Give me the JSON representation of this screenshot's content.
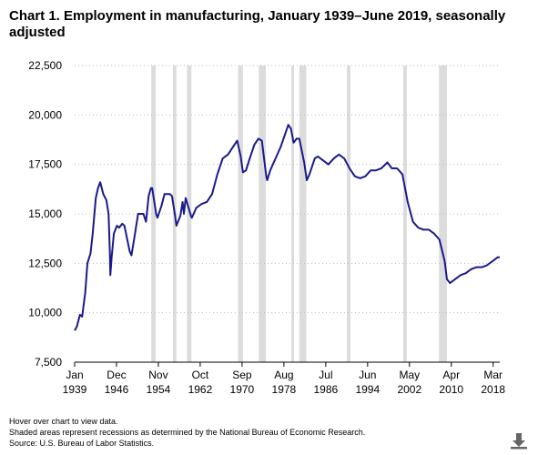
{
  "chart_data": {
    "type": "line",
    "title": [
      "Chart 1. Employment in manufacturing, January 1939–June 2019, seasonally",
      "adjusted"
    ],
    "notes": [
      "Hover over chart to view data.",
      "Shaded areas represent recessions as determined by the National Bureau of Economic Research.",
      "Source: U.S. Bureau of Labor Statistics."
    ],
    "xlim": [
      "1939-01",
      "2019-06"
    ],
    "xticks": [
      {
        "value": "1939-01",
        "label": [
          "Jan",
          "1939"
        ]
      },
      {
        "value": "1946-12",
        "label": [
          "Dec",
          "1946"
        ]
      },
      {
        "value": "1954-11",
        "label": [
          "Nov",
          "1954"
        ]
      },
      {
        "value": "1962-10",
        "label": [
          "Oct",
          "1962"
        ]
      },
      {
        "value": "1970-09",
        "label": [
          "Sep",
          "1970"
        ]
      },
      {
        "value": "1978-08",
        "label": [
          "Aug",
          "1978"
        ]
      },
      {
        "value": "1986-07",
        "label": [
          "Jul",
          "1986"
        ]
      },
      {
        "value": "1994-06",
        "label": [
          "Jun",
          "1994"
        ]
      },
      {
        "value": "2002-05",
        "label": [
          "May",
          "2002"
        ]
      },
      {
        "value": "2010-04",
        "label": [
          "Apr",
          "2010"
        ]
      },
      {
        "value": "2018-03",
        "label": [
          "Mar",
          "2018"
        ]
      }
    ],
    "ylim": [
      7500,
      22500
    ],
    "yticks": [
      {
        "value": 7500,
        "label": "7,500"
      },
      {
        "value": 10000,
        "label": "10,000"
      },
      {
        "value": 12500,
        "label": "12,500"
      },
      {
        "value": 15000,
        "label": "15,000"
      },
      {
        "value": 17500,
        "label": "17,500"
      },
      {
        "value": 20000,
        "label": "20,000"
      },
      {
        "value": 22500,
        "label": "22,500"
      }
    ],
    "grid": true,
    "recession_color": "#dcdcdc",
    "recessions": [
      [
        "1953-07",
        "1954-05"
      ],
      [
        "1957-08",
        "1958-04"
      ],
      [
        "1960-04",
        "1961-02"
      ],
      [
        "1969-12",
        "1970-11"
      ],
      [
        "1973-11",
        "1975-03"
      ],
      [
        "1980-01",
        "1980-07"
      ],
      [
        "1981-07",
        "1982-11"
      ],
      [
        "1990-07",
        "1991-03"
      ],
      [
        "2001-03",
        "2001-11"
      ],
      [
        "2007-12",
        "2009-06"
      ]
    ],
    "x": [
      "1939-01",
      "1939-06",
      "1940-01",
      "1940-06",
      "1941-01",
      "1941-06",
      "1942-01",
      "1942-06",
      "1943-01",
      "1943-06",
      "1943-11",
      "1944-06",
      "1945-01",
      "1945-06",
      "1945-09",
      "1945-10",
      "1946-01",
      "1946-06",
      "1947-01",
      "1947-06",
      "1948-01",
      "1948-06",
      "1949-06",
      "1949-10",
      "1950-06",
      "1951-01",
      "1952-01",
      "1952-07",
      "1953-01",
      "1953-06",
      "1953-09",
      "1954-06",
      "1954-09",
      "1955-06",
      "1956-01",
      "1957-01",
      "1957-06",
      "1958-01",
      "1958-04",
      "1959-01",
      "1959-06",
      "1959-09",
      "1960-01",
      "1961-01",
      "1961-03",
      "1962-01",
      "1963-01",
      "1964-01",
      "1965-01",
      "1966-01",
      "1967-01",
      "1968-01",
      "1969-01",
      "1969-10",
      "1970-06",
      "1970-11",
      "1971-06",
      "1972-01",
      "1973-01",
      "1973-10",
      "1974-06",
      "1975-04",
      "1975-06",
      "1976-01",
      "1977-01",
      "1978-01",
      "1979-06",
      "1979-12",
      "1980-06",
      "1981-01",
      "1981-07",
      "1982-06",
      "1982-12",
      "1983-06",
      "1984-06",
      "1985-01",
      "1986-01",
      "1987-01",
      "1988-01",
      "1989-01",
      "1990-01",
      "1991-01",
      "1992-01",
      "1993-01",
      "1994-01",
      "1995-01",
      "1996-01",
      "1997-01",
      "1998-03",
      "1999-01",
      "2000-01",
      "2001-01",
      "2002-01",
      "2003-01",
      "2004-01",
      "2005-01",
      "2006-01",
      "2007-01",
      "2008-01",
      "2009-01",
      "2009-06",
      "2010-01",
      "2011-01",
      "2012-01",
      "2013-01",
      "2014-01",
      "2015-01",
      "2016-01",
      "2017-01",
      "2018-01",
      "2019-01",
      "2019-06"
    ],
    "series": [
      {
        "name": "Employment in manufacturing",
        "color": "#1a1a8c",
        "values": [
          9100,
          9300,
          9900,
          9800,
          11000,
          12500,
          13000,
          14000,
          15800,
          16300,
          16600,
          16000,
          15700,
          15000,
          13000,
          11900,
          12800,
          14000,
          14400,
          14300,
          14500,
          14400,
          13100,
          12900,
          14000,
          15000,
          15000,
          14600,
          15900,
          16300,
          16300,
          15000,
          14800,
          15400,
          16000,
          16000,
          15900,
          14900,
          14400,
          14900,
          15600,
          15000,
          15800,
          14900,
          14800,
          15300,
          15500,
          15600,
          16000,
          17000,
          17800,
          18000,
          18400,
          18700,
          17900,
          17100,
          17200,
          17700,
          18500,
          18800,
          18700,
          16900,
          16700,
          17200,
          17800,
          18400,
          19500,
          19300,
          18600,
          18800,
          18800,
          17600,
          16700,
          17000,
          17800,
          17900,
          17700,
          17500,
          17800,
          18000,
          17800,
          17300,
          16900,
          16800,
          16900,
          17200,
          17200,
          17300,
          17600,
          17300,
          17300,
          17000,
          15600,
          14600,
          14300,
          14200,
          14200,
          14000,
          13700,
          12600,
          11700,
          11500,
          11700,
          11900,
          12000,
          12200,
          12300,
          12300,
          12400,
          12600,
          12800,
          12800
        ]
      }
    ]
  }
}
